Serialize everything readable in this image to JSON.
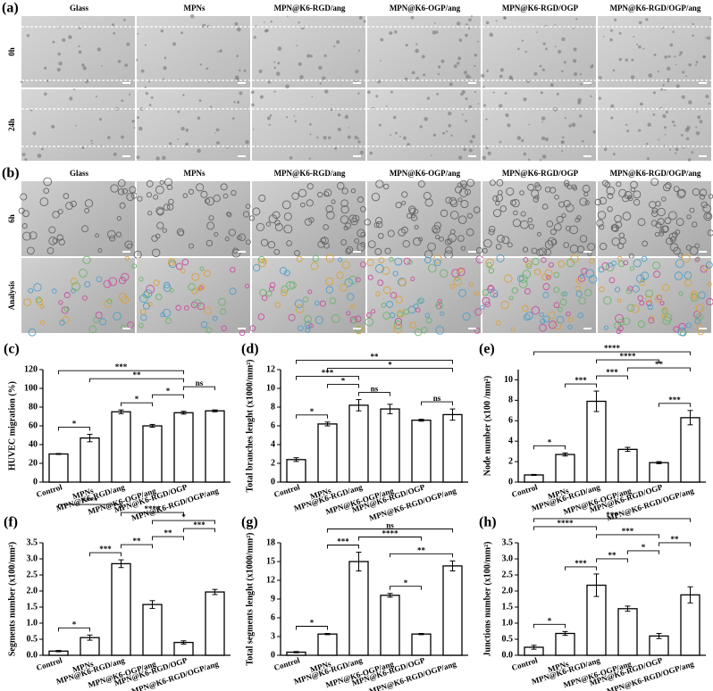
{
  "panel_a": {
    "label": "(a)",
    "columns": [
      "Glass",
      "MPNs",
      "MPN@K6-RGD/ang",
      "MPN@K6-OGP/ang",
      "MPN@K6-RGD/OGP",
      "MPN@K6-RGD/OGP/ang"
    ],
    "rows": [
      "0h",
      "24h"
    ]
  },
  "panel_b": {
    "label": "(b)",
    "columns": [
      "Glass",
      "MPNs",
      "MPN@K6-RGD/ang",
      "MPN@K6-OGP/ang",
      "MPN@K6-RGD/OGP",
      "MPN@K6-RGD/OGP/ang"
    ],
    "rows": [
      "6h",
      "Analysis"
    ]
  },
  "chart_data": [
    {
      "type": "bar",
      "label": "(c)",
      "y_label": "HUVEC migration (%)",
      "color": "#ffffff",
      "categories": [
        "Control",
        "MPNs",
        "MPN@K6-RGD/ang",
        "MPN@K6-OGP/ang",
        "MPN@K6-RGD/OGP",
        "MPN@K6-RGD/OGP/ang"
      ],
      "values": [
        30,
        47,
        75,
        60,
        74,
        76
      ],
      "errors": [
        0.5,
        4,
        2,
        1.5,
        1.5,
        1
      ],
      "ylim": [
        0,
        120
      ],
      "yticks": [
        0,
        20,
        40,
        60,
        80,
        100,
        120
      ],
      "brackets": [
        {
          "label": "*",
          "pair": [
            0,
            1
          ]
        },
        {
          "label": "*",
          "pair": [
            2,
            3
          ]
        },
        {
          "label": "*",
          "pair": [
            3,
            4
          ]
        },
        {
          "label": "ns",
          "pair": [
            4,
            5
          ]
        },
        {
          "label": "**",
          "pair": [
            1,
            4
          ]
        },
        {
          "label": "***",
          "pair": [
            0,
            4
          ]
        }
      ]
    },
    {
      "type": "bar",
      "label": "(d)",
      "y_label": "Total branches lenght (x1000/mm²)",
      "color": "#ffffff",
      "categories": [
        "Control",
        "MPNs",
        "MPN@K6-RGD/ang",
        "MPN@K6-OGP/ang",
        "MPN@K6-RGD/OGP",
        "MPN@K6-RGD/OGP/ang"
      ],
      "values": [
        2.4,
        6.2,
        8.2,
        7.8,
        6.6,
        7.2
      ],
      "errors": [
        0.2,
        0.2,
        0.6,
        0.5,
        0.1,
        0.6
      ],
      "ylim": [
        0,
        12
      ],
      "yticks": [
        0,
        2,
        4,
        6,
        8,
        10,
        12
      ],
      "brackets": [
        {
          "label": "*",
          "pair": [
            0,
            1
          ]
        },
        {
          "label": "ns",
          "pair": [
            2,
            3
          ]
        },
        {
          "label": "ns",
          "pair": [
            4,
            5
          ]
        },
        {
          "label": "*",
          "pair": [
            1,
            2
          ]
        },
        {
          "label": "***",
          "pair": [
            0,
            2
          ]
        },
        {
          "label": "*",
          "pair": [
            1,
            5
          ]
        },
        {
          "label": "**",
          "pair": [
            0,
            5
          ]
        }
      ]
    },
    {
      "type": "bar",
      "label": "(e)",
      "y_label": "Node number (x100 /mm²)",
      "color": "#ffffff",
      "categories": [
        "Control",
        "MPNs",
        "MPN@K6-RGD/ang",
        "MPN@K6-OGP/ang",
        "MPN@K6-RGD/OGP",
        "MPN@K6-RGD/OGP/ang"
      ],
      "values": [
        0.7,
        2.7,
        7.9,
        3.2,
        1.9,
        6.3
      ],
      "errors": [
        0.05,
        0.15,
        1.0,
        0.2,
        0.1,
        0.7
      ],
      "ylim": [
        0,
        11
      ],
      "yticks": [
        0,
        2,
        4,
        6,
        8,
        10
      ],
      "brackets": [
        {
          "label": "*",
          "pair": [
            0,
            1
          ]
        },
        {
          "label": "***",
          "pair": [
            1,
            2
          ]
        },
        {
          "label": "***",
          "pair": [
            2,
            3
          ]
        },
        {
          "label": "***",
          "pair": [
            4,
            5
          ]
        },
        {
          "label": "**",
          "pair": [
            3,
            5
          ]
        },
        {
          "label": "****",
          "pair": [
            2,
            4
          ]
        },
        {
          "label": "****",
          "pair": [
            0,
            5
          ]
        }
      ]
    },
    {
      "type": "bar",
      "label": "(f)",
      "y_label": "Segments number (x100/mm²)",
      "color": "#ffffff",
      "categories": [
        "Control",
        "MPNs",
        "MPN@K6-RGD/ang",
        "MPN@K6-OGP/ang",
        "MPN@K6-RGD/OGP",
        "MPN@K6-RGD/OGP/ang"
      ],
      "values": [
        0.13,
        0.55,
        2.85,
        1.58,
        0.4,
        1.97
      ],
      "errors": [
        0.02,
        0.08,
        0.12,
        0.12,
        0.05,
        0.08
      ],
      "ylim": [
        0,
        3.5
      ],
      "yticks": [
        {
          "value": 0,
          "label": "0.0"
        },
        0.5,
        {
          "value": 1,
          "label": "1.0"
        },
        1.5,
        {
          "value": 2,
          "label": "2.0"
        },
        2.5,
        {
          "value": 3,
          "label": "3.0"
        },
        3.5
      ],
      "brackets": [
        {
          "label": "*",
          "pair": [
            0,
            1
          ]
        },
        {
          "label": "***",
          "pair": [
            1,
            2
          ]
        },
        {
          "label": "**",
          "pair": [
            2,
            3
          ]
        },
        {
          "label": "**",
          "pair": [
            3,
            4
          ]
        },
        {
          "label": "***",
          "pair": [
            4,
            5
          ]
        },
        {
          "label": "*",
          "pair": [
            3,
            5
          ]
        },
        {
          "label": "****",
          "pair": [
            2,
            4
          ]
        },
        {
          "label": "****",
          "pair": [
            0,
            2
          ]
        }
      ]
    },
    {
      "type": "bar",
      "label": "(g)",
      "y_label": "Total segments lenght (x1000/mm²)",
      "color": "#ffffff",
      "categories": [
        "Control",
        "MPNs",
        "MPN@K6-RGD/ang",
        "MPN@K6-OGP/ang",
        "MPN@K6-RGD/OGP",
        "MPN@K6-RGD/OGP/ang"
      ],
      "values": [
        0.5,
        3.4,
        15.0,
        9.6,
        3.4,
        14.3
      ],
      "errors": [
        0.1,
        0.1,
        1.5,
        0.3,
        0.1,
        0.8
      ],
      "ylim": [
        0,
        18
      ],
      "yticks": [
        0,
        3,
        6,
        9,
        12,
        15,
        18
      ],
      "brackets": [
        {
          "label": "*",
          "pair": [
            0,
            1
          ]
        },
        {
          "label": "***",
          "pair": [
            1,
            2
          ]
        },
        {
          "label": "*",
          "pair": [
            3,
            4
          ]
        },
        {
          "label": "**",
          "pair": [
            3,
            5
          ]
        },
        {
          "label": "****",
          "pair": [
            2,
            4
          ]
        },
        {
          "label": "ns",
          "pair": [
            1,
            5
          ]
        }
      ]
    },
    {
      "type": "bar",
      "label": "(h)",
      "y_label": "Junctions number (x100/mm²)",
      "color": "#ffffff",
      "categories": [
        "Control",
        "MPNs",
        "MPN@K6-RGD/ang",
        "MPN@K6-OGP/ang",
        "MPN@K6-RGD/OGP",
        "MPN@K6-RGD/OGP/ang"
      ],
      "values": [
        0.25,
        0.68,
        2.18,
        1.45,
        0.6,
        1.88
      ],
      "errors": [
        0.06,
        0.06,
        0.35,
        0.08,
        0.08,
        0.25
      ],
      "ylim": [
        0,
        3.5
      ],
      "yticks": [
        {
          "value": 0,
          "label": "0.0"
        },
        0.5,
        {
          "value": 1,
          "label": "1.0"
        },
        1.5,
        {
          "value": 2,
          "label": "2.0"
        },
        2.5,
        {
          "value": 3,
          "label": "3.0"
        },
        3.5
      ],
      "brackets": [
        {
          "label": "*",
          "pair": [
            0,
            1
          ]
        },
        {
          "label": "***",
          "pair": [
            1,
            2
          ]
        },
        {
          "label": "**",
          "pair": [
            2,
            3
          ]
        },
        {
          "label": "*",
          "pair": [
            3,
            4
          ]
        },
        {
          "label": "**",
          "pair": [
            4,
            5
          ]
        },
        {
          "label": "***",
          "pair": [
            2,
            4
          ]
        },
        {
          "label": "****",
          "pair": [
            0,
            2
          ]
        },
        {
          "label": "***",
          "pair": [
            0,
            5
          ]
        }
      ]
    }
  ]
}
